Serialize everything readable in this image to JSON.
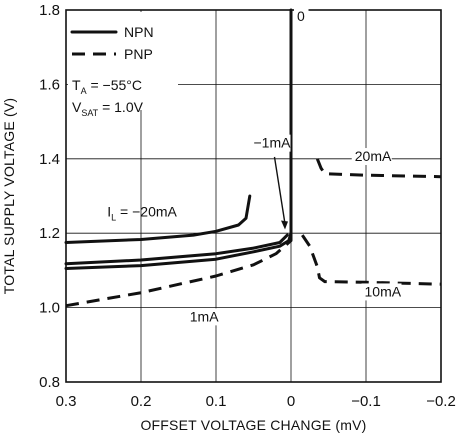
{
  "chart_data": {
    "type": "line",
    "xlabel": "OFFSET VOLTAGE CHANGE (mV)",
    "ylabel": "TOTAL SUPPLY VOLTAGE (V)",
    "xlim": [
      0.3,
      -0.2
    ],
    "ylim": [
      0.8,
      1.8
    ],
    "x_ticks": [
      {
        "value": 0.3,
        "label": "0.3"
      },
      {
        "value": 0.2,
        "label": "0.2"
      },
      {
        "value": 0.1,
        "label": "0.1"
      },
      {
        "value": 0,
        "label": "0"
      },
      {
        "value": -0.1,
        "label": "−0.1"
      },
      {
        "value": -0.2,
        "label": "−0.2"
      }
    ],
    "y_ticks": [
      {
        "value": 0.8,
        "label": "0.8"
      },
      {
        "value": 1.0,
        "label": "1.0"
      },
      {
        "value": 1.2,
        "label": "1.2"
      },
      {
        "value": 1.4,
        "label": "1.4"
      },
      {
        "value": 1.6,
        "label": "1.6"
      },
      {
        "value": 1.8,
        "label": "1.8"
      }
    ],
    "grid": true,
    "legend_position": "top-left",
    "legend": [
      {
        "label": "NPN",
        "style": "solid"
      },
      {
        "label": "PNP",
        "style": "dashed"
      }
    ],
    "conditions": {
      "ta_prefix": "T",
      "ta_sub": "A",
      "ta_rest": " = −55°C",
      "vsat_prefix": "V",
      "vsat_sub": "SAT",
      "vsat_rest": " = 1.0V"
    },
    "series": [
      {
        "type": "NPN",
        "style": "solid",
        "points": [
          [
            0.3,
            1.175
          ],
          [
            0.2,
            1.183
          ],
          [
            0.13,
            1.195
          ],
          [
            0.1,
            1.205
          ],
          [
            0.07,
            1.222
          ],
          [
            0.06,
            1.24
          ],
          [
            0.055,
            1.3
          ]
        ]
      },
      {
        "type": "NPN",
        "style": "solid",
        "points": [
          [
            0.3,
            1.118
          ],
          [
            0.2,
            1.128
          ],
          [
            0.1,
            1.145
          ],
          [
            0.05,
            1.16
          ],
          [
            0.015,
            1.175
          ],
          [
            0.005,
            1.195
          ]
        ]
      },
      {
        "type": "NPN",
        "style": "solid",
        "points": [
          [
            0.3,
            1.105
          ],
          [
            0.2,
            1.113
          ],
          [
            0.1,
            1.13
          ],
          [
            0.05,
            1.15
          ],
          [
            0.015,
            1.165
          ],
          [
            0.003,
            1.18
          ],
          [
            0.0,
            1.2
          ],
          [
            0.0,
            1.8
          ]
        ]
      },
      {
        "type": "PNP",
        "style": "dashed",
        "points": [
          [
            0.3,
            1.005
          ],
          [
            0.2,
            1.04
          ],
          [
            0.1,
            1.085
          ],
          [
            0.05,
            1.115
          ],
          [
            0.02,
            1.145
          ],
          [
            0.0,
            1.18
          ],
          [
            0.0,
            1.21
          ]
        ]
      },
      {
        "type": "PNP",
        "style": "dashed",
        "points": [
          [
            -0.015,
            1.195
          ],
          [
            -0.025,
            1.165
          ],
          [
            -0.035,
            1.11
          ],
          [
            -0.038,
            1.08
          ],
          [
            -0.045,
            1.07
          ],
          [
            -0.1,
            1.068
          ],
          [
            -0.2,
            1.063
          ]
        ]
      },
      {
        "type": "PNP",
        "style": "dashed",
        "points": [
          [
            -0.035,
            1.4
          ],
          [
            -0.04,
            1.375
          ],
          [
            -0.045,
            1.36
          ],
          [
            -0.1,
            1.356
          ],
          [
            -0.2,
            1.352
          ]
        ]
      }
    ],
    "annotations": [
      {
        "text": "0",
        "x": -0.008,
        "y": 1.77
      },
      {
        "text": "−1mA",
        "x": 0.05,
        "y": 1.43
      },
      {
        "text": "20mA",
        "x": -0.085,
        "y": 1.394
      },
      {
        "text": "10mA",
        "x": -0.098,
        "y": 1.03
      },
      {
        "text": "1mA",
        "x": 0.135,
        "y": 0.963
      }
    ],
    "load_label": {
      "prefix": "I",
      "sub": "L",
      "rest": " = −20mA",
      "x": 0.245,
      "y": 1.245
    }
  }
}
